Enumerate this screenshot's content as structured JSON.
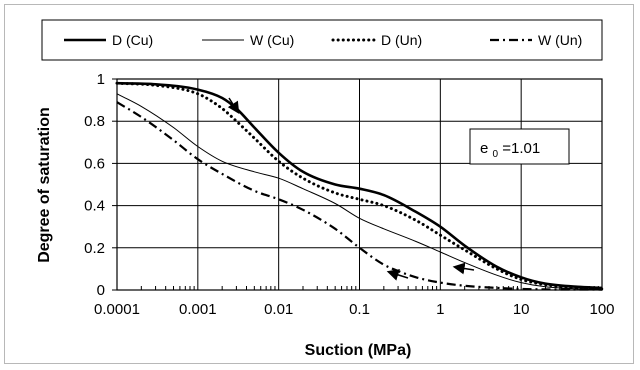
{
  "chart_data": {
    "type": "line",
    "xlabel": "Suction (MPa)",
    "ylabel": "Degree of saturation",
    "xscale": "log",
    "xlim": [
      0.0001,
      100
    ],
    "ylim": [
      0,
      1
    ],
    "grid": true,
    "legend_position": "top",
    "x_tick_labels": [
      "0.0001",
      "0.001",
      "0.01",
      "0.1",
      "1",
      "10",
      "100"
    ],
    "y_tick_labels": [
      "0",
      "0.2",
      "0.4",
      "0.6",
      "0.8",
      "1"
    ],
    "annotation": {
      "text": "e",
      "subscript": "0",
      "suffix": "=1.01"
    },
    "series": [
      {
        "name": "D (Cu)",
        "style": "thick-solid",
        "color": "#000000",
        "x": [
          0.0001,
          0.0003,
          0.001,
          0.002,
          0.003,
          0.005,
          0.01,
          0.02,
          0.05,
          0.1,
          0.2,
          0.5,
          1,
          2,
          5,
          10,
          20,
          50,
          100
        ],
        "y": [
          0.98,
          0.975,
          0.95,
          0.91,
          0.86,
          0.77,
          0.65,
          0.56,
          0.5,
          0.48,
          0.45,
          0.37,
          0.3,
          0.21,
          0.11,
          0.06,
          0.03,
          0.015,
          0.01
        ]
      },
      {
        "name": "W (Cu)",
        "style": "thin-solid",
        "color": "#000000",
        "x": [
          0.0001,
          0.0002,
          0.0005,
          0.001,
          0.002,
          0.005,
          0.01,
          0.02,
          0.05,
          0.1,
          0.2,
          0.5,
          1,
          2,
          5,
          10,
          20,
          50,
          100
        ],
        "y": [
          0.93,
          0.87,
          0.77,
          0.68,
          0.61,
          0.56,
          0.53,
          0.48,
          0.41,
          0.34,
          0.29,
          0.23,
          0.18,
          0.13,
          0.07,
          0.035,
          0.015,
          0.005,
          0.002
        ]
      },
      {
        "name": "D (Un)",
        "style": "dotted",
        "color": "#000000",
        "x": [
          0.0001,
          0.0003,
          0.001,
          0.002,
          0.003,
          0.005,
          0.01,
          0.02,
          0.05,
          0.1,
          0.2,
          0.5,
          1,
          2,
          5,
          10,
          20,
          50,
          100
        ],
        "y": [
          0.98,
          0.97,
          0.93,
          0.86,
          0.8,
          0.72,
          0.61,
          0.53,
          0.46,
          0.43,
          0.4,
          0.33,
          0.26,
          0.19,
          0.1,
          0.05,
          0.025,
          0.01,
          0.005
        ]
      },
      {
        "name": "W (Un)",
        "style": "dash-dot",
        "color": "#000000",
        "x": [
          0.0001,
          0.0002,
          0.0005,
          0.001,
          0.002,
          0.005,
          0.01,
          0.02,
          0.05,
          0.1,
          0.2,
          0.3,
          0.5,
          1,
          2,
          5,
          10,
          20,
          100
        ],
        "y": [
          0.89,
          0.82,
          0.71,
          0.62,
          0.55,
          0.47,
          0.43,
          0.38,
          0.29,
          0.2,
          0.12,
          0.09,
          0.06,
          0.035,
          0.02,
          0.01,
          0.005,
          0.003,
          0.002
        ]
      }
    ]
  }
}
